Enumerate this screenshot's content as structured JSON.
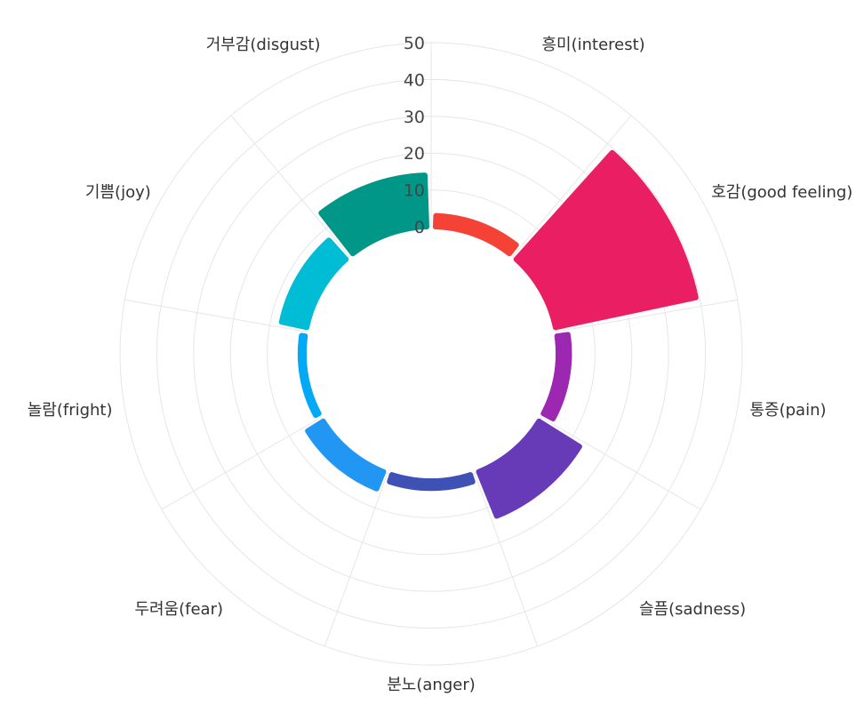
{
  "chart_data": {
    "type": "polar-bar",
    "categories": [
      "흥미(interest)",
      "호감(good feeling)",
      "통증(pain)",
      "슬픔(sadness)",
      "분노(anger)",
      "두려움(fear)",
      "놀람(fright)",
      "기쁨(joy)",
      "거부감(disgust)"
    ],
    "values": [
      3,
      39,
      3,
      13,
      2,
      5,
      1,
      7,
      14
    ],
    "colors": [
      "#f44336",
      "#e91e63",
      "#9c27b0",
      "#673ab7",
      "#3f51b5",
      "#2196f3",
      "#03a9f4",
      "#00bcd4",
      "#009688"
    ],
    "rlim": [
      0,
      50
    ],
    "rticks": [
      "0",
      "10",
      "20",
      "30",
      "40",
      "50"
    ],
    "grid": true
  }
}
